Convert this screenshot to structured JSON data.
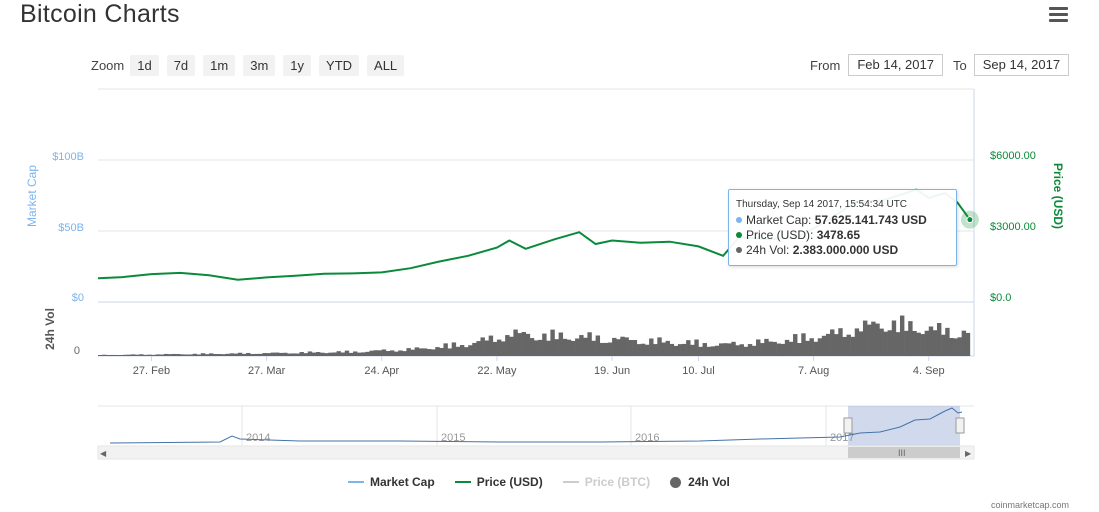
{
  "title": "Bitcoin Charts",
  "zoom": {
    "label": "Zoom",
    "buttons": [
      "1d",
      "7d",
      "1m",
      "3m",
      "1y",
      "YTD",
      "ALL"
    ]
  },
  "range": {
    "from_label": "From",
    "from_value": "Feb 14, 2017",
    "to_label": "To",
    "to_value": "Sep 14, 2017"
  },
  "colors": {
    "market_cap": "#7cb5ec",
    "price": "#0a8a3a",
    "price_btc": "#cccccc",
    "volume": "#666666"
  },
  "chart_data": {
    "type": "line",
    "x_start": "Feb 14, 2017",
    "x_end": "Sep 14, 2017",
    "x_tick_labels": [
      "27. Feb",
      "27. Mar",
      "24. Apr",
      "22. May",
      "19. Jun",
      "10. Jul",
      "7. Aug",
      "4. Sep"
    ],
    "left_axis": {
      "title": "Market Cap",
      "ticks": [
        "$0",
        "$50B",
        "$100B"
      ],
      "range": [
        0,
        100
      ]
    },
    "right_axis": {
      "title": "Price (USD)",
      "ticks": [
        "$0.0",
        "$3000.00",
        "$6000.00"
      ],
      "range": [
        0,
        6000
      ]
    },
    "volume_axis": {
      "title": "24h Vol",
      "ticks": [
        "0"
      ]
    },
    "series": [
      {
        "name": "Price (USD)",
        "axis": "right",
        "dates": [
          "2017-02-14",
          "2017-02-20",
          "2017-02-27",
          "2017-03-06",
          "2017-03-13",
          "2017-03-20",
          "2017-03-27",
          "2017-04-03",
          "2017-04-10",
          "2017-04-17",
          "2017-04-24",
          "2017-05-01",
          "2017-05-08",
          "2017-05-15",
          "2017-05-22",
          "2017-05-25",
          "2017-05-29",
          "2017-06-05",
          "2017-06-11",
          "2017-06-15",
          "2017-06-19",
          "2017-06-26",
          "2017-07-03",
          "2017-07-10",
          "2017-07-16",
          "2017-07-20",
          "2017-07-27",
          "2017-08-03",
          "2017-08-10",
          "2017-08-17",
          "2017-08-24",
          "2017-09-01",
          "2017-09-04",
          "2017-09-08",
          "2017-09-11",
          "2017-09-14"
        ],
        "values": [
          1000,
          1050,
          1180,
          1230,
          1130,
          940,
          1040,
          1110,
          1190,
          1210,
          1250,
          1430,
          1710,
          1950,
          2300,
          2600,
          2250,
          2650,
          2950,
          2450,
          2600,
          2500,
          2550,
          2350,
          1950,
          2750,
          2650,
          2720,
          3400,
          4200,
          4300,
          4750,
          4400,
          4600,
          4200,
          3478.65
        ]
      },
      {
        "name": "Market Cap",
        "axis": "left"
      },
      {
        "name": "Price (BTC)"
      },
      {
        "name": "24h Vol",
        "axis": "volume",
        "dates": [
          "2017-02-14",
          "2017-03-06",
          "2017-03-27",
          "2017-04-17",
          "2017-05-01",
          "2017-05-15",
          "2017-05-25",
          "2017-06-11",
          "2017-06-26",
          "2017-07-16",
          "2017-07-27",
          "2017-08-10",
          "2017-08-24",
          "2017-09-04",
          "2017-09-14"
        ],
        "values": [
          0.1,
          0.2,
          0.3,
          0.45,
          0.7,
          1.3,
          2.3,
          2.0,
          1.6,
          1.2,
          1.5,
          2.2,
          3.5,
          2.8,
          2.38
        ]
      }
    ],
    "navigator_years": [
      "2014",
      "2015",
      "2016",
      "2017"
    ],
    "tooltip": {
      "timestamp": "Thursday, Sep 14 2017, 15:54:34 UTC",
      "rows": [
        {
          "label": "Market Cap:",
          "value": "57.625.141.743 USD",
          "color": "#7cb5ec"
        },
        {
          "label": "Price (USD):",
          "value": "3478.65",
          "color": "#0a8a3a"
        },
        {
          "label": "24h Vol:",
          "value": "2.383.000.000 USD",
          "color": "#666666"
        }
      ]
    },
    "legend": [
      {
        "name": "Market Cap",
        "color": "#7cb5ec",
        "shape": "line",
        "active": true
      },
      {
        "name": "Price (USD)",
        "color": "#0a8a3a",
        "shape": "line",
        "active": true
      },
      {
        "name": "Price (BTC)",
        "color": "#cccccc",
        "shape": "line",
        "active": false
      },
      {
        "name": "24h Vol",
        "color": "#666666",
        "shape": "circle",
        "active": true
      }
    ]
  },
  "credits": "coinmarketcap.com"
}
